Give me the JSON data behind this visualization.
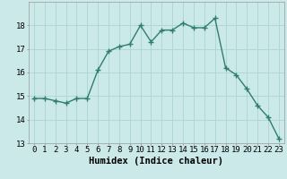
{
  "x": [
    0,
    1,
    2,
    3,
    4,
    5,
    6,
    7,
    8,
    9,
    10,
    11,
    12,
    13,
    14,
    15,
    16,
    17,
    18,
    19,
    20,
    21,
    22,
    23
  ],
  "y": [
    14.9,
    14.9,
    14.8,
    14.7,
    14.9,
    14.9,
    16.1,
    16.9,
    17.1,
    17.2,
    18.0,
    17.3,
    17.8,
    17.8,
    18.1,
    17.9,
    17.9,
    18.3,
    16.2,
    15.9,
    15.3,
    14.6,
    14.1,
    13.2
  ],
  "line_color": "#2e7d6e",
  "marker": "+",
  "markersize": 4,
  "linewidth": 1.0,
  "xlabel": "Humidex (Indice chaleur)",
  "xlabel_fontsize": 7.5,
  "background_color": "#cce9e9",
  "grid_color": "#aad4d4",
  "ylim": [
    13,
    19
  ],
  "xlim": [
    -0.5,
    23.5
  ],
  "yticks": [
    13,
    14,
    15,
    16,
    17,
    18
  ],
  "xticks": [
    0,
    1,
    2,
    3,
    4,
    5,
    6,
    7,
    8,
    9,
    10,
    11,
    12,
    13,
    14,
    15,
    16,
    17,
    18,
    19,
    20,
    21,
    22,
    23
  ],
  "tick_fontsize": 6.5
}
